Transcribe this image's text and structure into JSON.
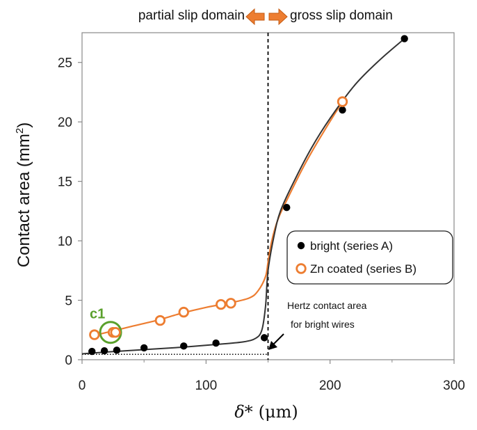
{
  "chart_data": {
    "type": "scatter",
    "xlabel_symbol": "δ*",
    "xlabel_unit": "(μm)",
    "ylabel_main": "Contact area (mm",
    "ylabel_sup": "2",
    "ylabel_close": ")",
    "xlim": [
      0,
      300
    ],
    "ylim": [
      0,
      27.5
    ],
    "xticks": [
      0,
      100,
      200,
      300
    ],
    "yticks": [
      0,
      5,
      10,
      15,
      20,
      25
    ],
    "grid": false,
    "legend_position": "right",
    "domains": {
      "left": "partial slip domain",
      "right": "gross slip domain",
      "boundary_x": 150,
      "arrow_color": "#ed7d31"
    },
    "series": [
      {
        "name": "bright (series A)",
        "color": "#000000",
        "marker": "filled-circle",
        "x": [
          8,
          18,
          28,
          50,
          82,
          108,
          147,
          165,
          210,
          260
        ],
        "y": [
          0.7,
          0.75,
          0.8,
          1.0,
          1.15,
          1.4,
          1.85,
          12.8,
          21.0,
          27.0
        ],
        "trend": {
          "x": [
            0,
            20,
            50,
            80,
            110,
            130,
            140,
            145,
            148,
            150,
            155,
            160,
            170,
            185,
            200,
            220,
            240,
            260
          ],
          "y": [
            0.5,
            0.65,
            0.85,
            1.05,
            1.3,
            1.5,
            1.8,
            2.5,
            4.5,
            7.5,
            10.5,
            12.5,
            14.8,
            17.8,
            20.3,
            23.1,
            25.2,
            27.0
          ]
        }
      },
      {
        "name": "Zn coated (series B)",
        "color": "#ed7d31",
        "marker": "open-circle",
        "x": [
          10,
          25,
          27,
          63,
          82,
          112,
          120,
          210
        ],
        "y": [
          2.1,
          2.3,
          2.3,
          3.3,
          4.0,
          4.65,
          4.75,
          21.7
        ],
        "trend": {
          "x": [
            8,
            20,
            40,
            60,
            80,
            100,
            120,
            135,
            142,
            148,
            150,
            153,
            158,
            165,
            180,
            195,
            210
          ],
          "y": [
            2.0,
            2.3,
            2.8,
            3.3,
            3.9,
            4.4,
            4.8,
            5.2,
            5.8,
            7.0,
            8.2,
            10.0,
            11.8,
            13.4,
            16.5,
            19.2,
            21.7
          ]
        }
      }
    ],
    "hertz": {
      "y": 0.45,
      "x_end": 150,
      "label_line1": "Hertz contact area",
      "label_line2": "for bright wires"
    },
    "highlight": {
      "label": "c1",
      "x": 23,
      "y": 2.3,
      "color": "#5aa02c"
    }
  }
}
